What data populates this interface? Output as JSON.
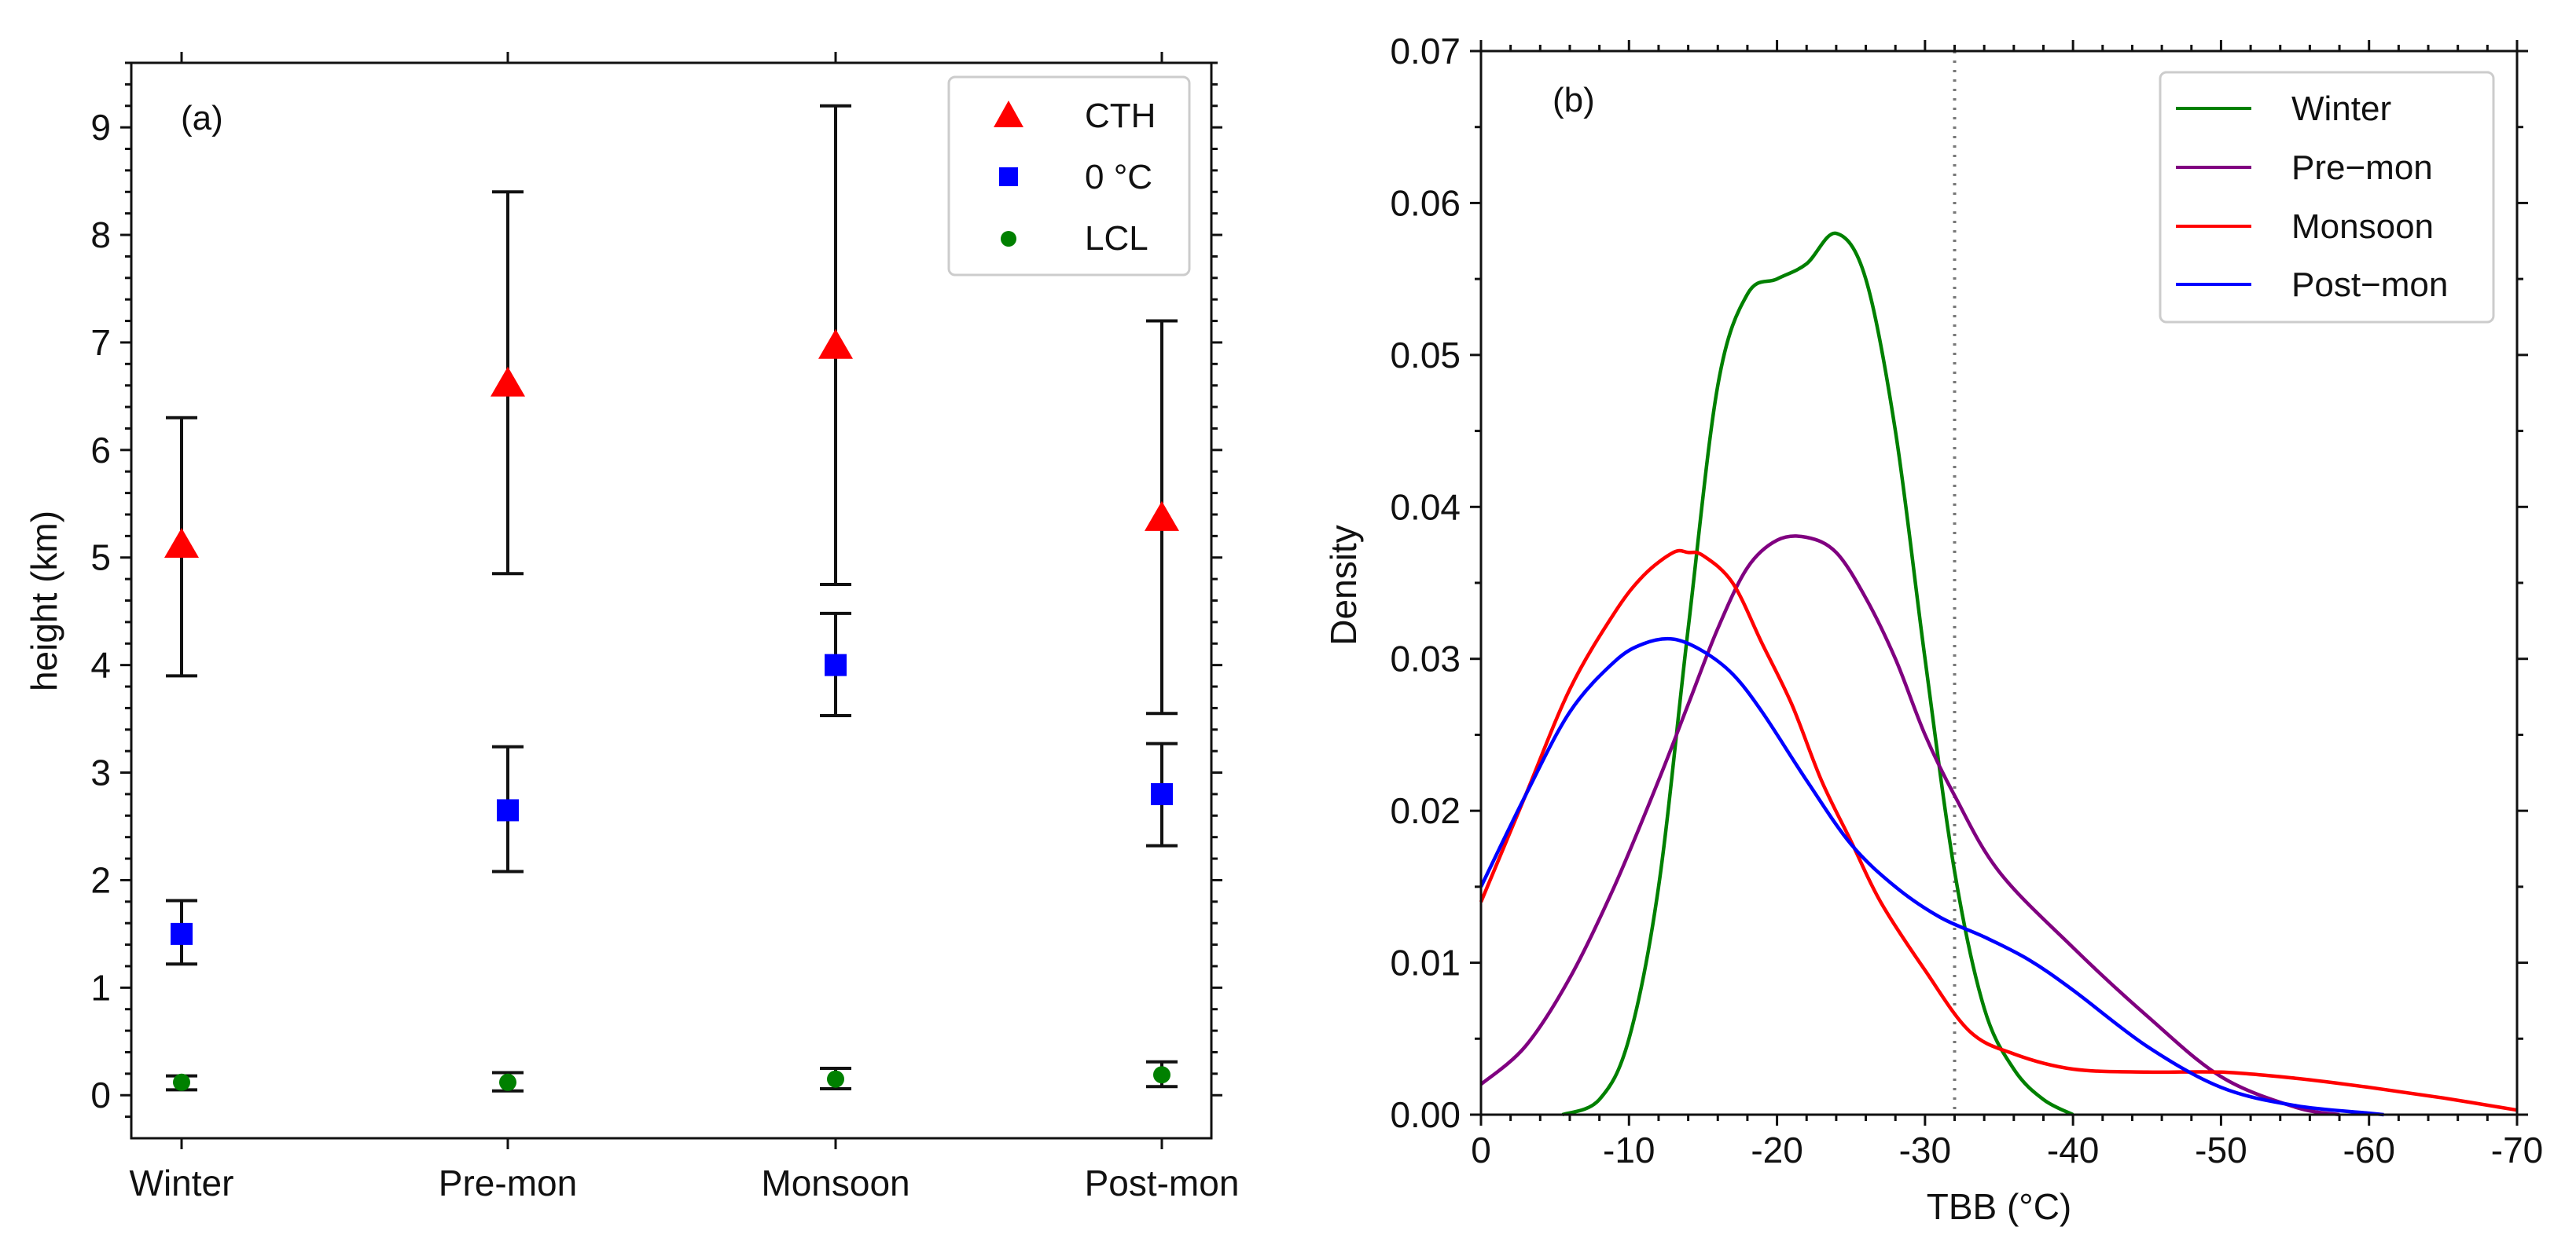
{
  "chart_data": [
    {
      "type": "scatter",
      "panel_label": "(a)",
      "title": "",
      "xlabel": "",
      "ylabel": "height (km)",
      "categories": [
        "Winter",
        "Pre-mon",
        "Monsoon",
        "Post-mon"
      ],
      "ylim": [
        -0.4,
        9.6
      ],
      "yticks": [
        "0",
        "1",
        "2",
        "3",
        "4",
        "5",
        "6",
        "7",
        "8",
        "9"
      ],
      "legend_position": "top-right",
      "series": [
        {
          "name": "CTH",
          "marker": "triangle",
          "color": "#ff0000",
          "values": [
            5.1,
            6.6,
            6.95,
            5.35
          ],
          "err_low": [
            3.9,
            4.85,
            4.75,
            3.55
          ],
          "err_high": [
            6.3,
            8.4,
            9.2,
            7.2
          ]
        },
        {
          "name": "0 °C",
          "marker": "square",
          "color": "#0000ff",
          "values": [
            1.5,
            2.65,
            4.0,
            2.8
          ],
          "err_low": [
            1.22,
            2.08,
            3.53,
            2.32
          ],
          "err_high": [
            1.81,
            3.24,
            4.48,
            3.27
          ]
        },
        {
          "name": "LCL",
          "marker": "circle",
          "color": "#008000",
          "values": [
            0.12,
            0.12,
            0.15,
            0.19
          ],
          "err_low": [
            0.05,
            0.04,
            0.06,
            0.08
          ],
          "err_high": [
            0.18,
            0.21,
            0.25,
            0.31
          ]
        }
      ]
    },
    {
      "type": "line",
      "panel_label": "(b)",
      "title": "",
      "xlabel": "TBB (°C)",
      "ylabel": "Density",
      "xlim": [
        0,
        -70
      ],
      "ylim": [
        0,
        0.07
      ],
      "xticks": [
        "0",
        "-10",
        "-20",
        "-30",
        "-40",
        "-50",
        "-60",
        "-70"
      ],
      "yticks": [
        "0.00",
        "0.01",
        "0.02",
        "0.03",
        "0.04",
        "0.05",
        "0.06",
        "0.07"
      ],
      "reference_line_x": -32,
      "legend_position": "top-right",
      "series": [
        {
          "name": "Winter",
          "color": "#008000",
          "x": [
            -5.5,
            -8,
            -10,
            -12,
            -14,
            -16,
            -18,
            -20,
            -22,
            -24,
            -26,
            -28,
            -30,
            -32,
            -34,
            -36,
            -38,
            -40
          ],
          "y": [
            0.0,
            0.001,
            0.005,
            0.015,
            0.032,
            0.048,
            0.054,
            0.055,
            0.056,
            0.058,
            0.055,
            0.045,
            0.03,
            0.016,
            0.007,
            0.003,
            0.001,
            0.0
          ]
        },
        {
          "name": "Pre−mon",
          "color": "#800080",
          "x": [
            0,
            -3,
            -6,
            -9,
            -12,
            -14,
            -16,
            -18,
            -20,
            -22,
            -24,
            -26,
            -28,
            -30,
            -32,
            -35,
            -40,
            -45,
            -50,
            -55,
            -58
          ],
          "y": [
            0.002,
            0.0045,
            0.009,
            0.015,
            0.022,
            0.027,
            0.032,
            0.036,
            0.0378,
            0.038,
            0.037,
            0.034,
            0.03,
            0.025,
            0.021,
            0.016,
            0.011,
            0.0065,
            0.0025,
            0.0005,
            0.0
          ]
        },
        {
          "name": "Monsoon",
          "color": "#ff0000",
          "x": [
            0,
            -3,
            -6,
            -9,
            -11,
            -13,
            -14,
            -15,
            -17,
            -19,
            -21,
            -23,
            -25,
            -27,
            -30,
            -33,
            -36,
            -40,
            -45,
            -50,
            -55,
            -60,
            -65,
            -70
          ],
          "y": [
            0.014,
            0.021,
            0.028,
            0.033,
            0.0355,
            0.037,
            0.037,
            0.0368,
            0.035,
            0.031,
            0.027,
            0.022,
            0.018,
            0.014,
            0.0095,
            0.0055,
            0.004,
            0.003,
            0.0028,
            0.0028,
            0.0024,
            0.0018,
            0.0011,
            0.0003
          ]
        },
        {
          "name": "Post−mon",
          "color": "#0000ff",
          "x": [
            0,
            -3,
            -6,
            -9,
            -11,
            -13,
            -15,
            -17,
            -19,
            -22,
            -25,
            -28,
            -31,
            -34,
            -37,
            -40,
            -45,
            -50,
            -55,
            -60,
            -61
          ],
          "y": [
            0.015,
            0.021,
            0.0265,
            0.0298,
            0.031,
            0.0313,
            0.0305,
            0.029,
            0.0265,
            0.022,
            0.0178,
            0.015,
            0.013,
            0.0117,
            0.0102,
            0.0082,
            0.0045,
            0.0018,
            0.0006,
            0.0001,
            0.0
          ]
        }
      ]
    }
  ]
}
